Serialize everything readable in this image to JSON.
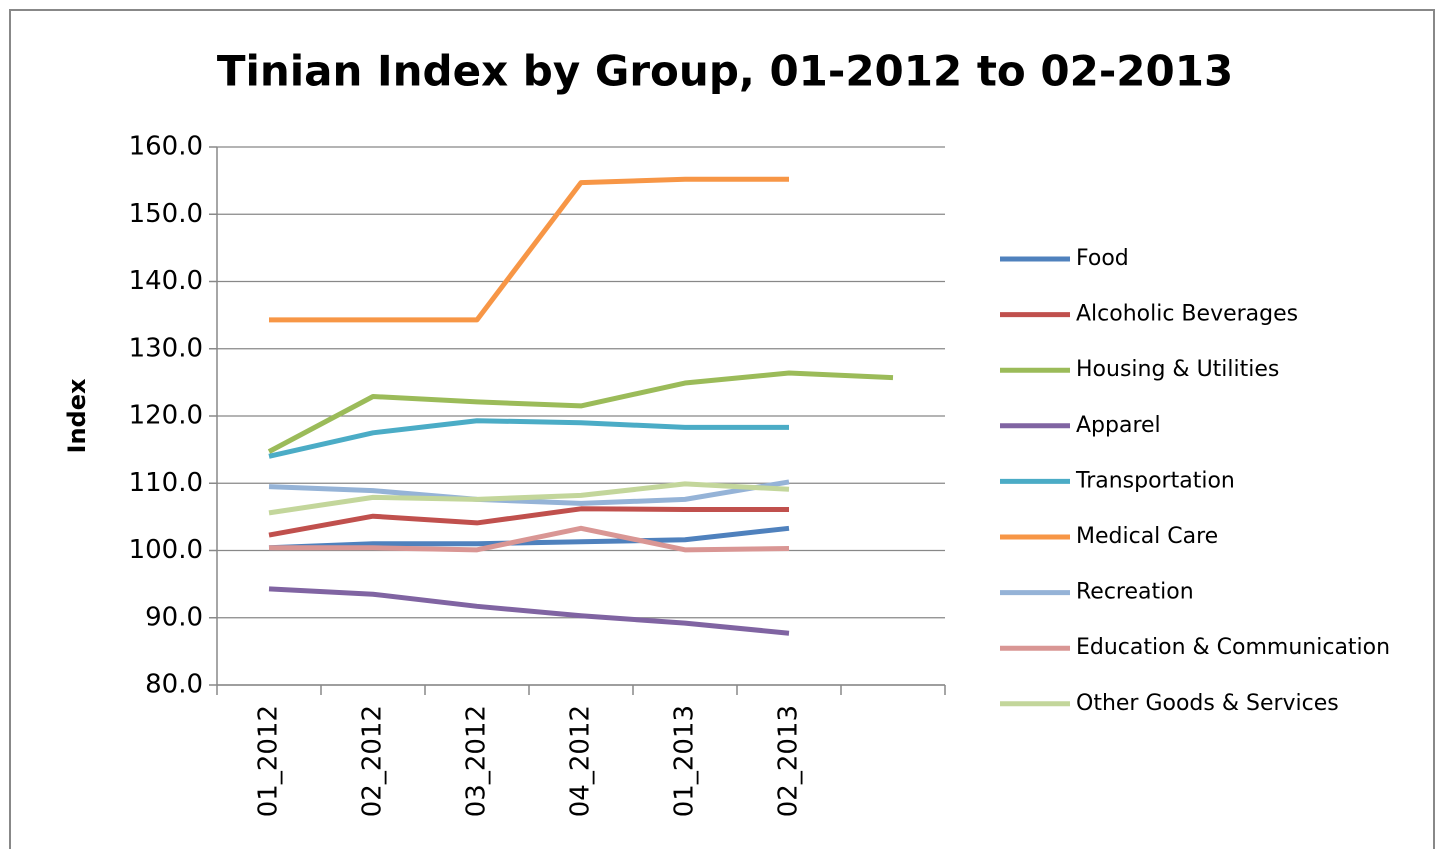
{
  "chart_data": {
    "type": "line",
    "title": "Tinian Index by Group, 01-2012 to 02-2013",
    "y_label": "Index",
    "categories": [
      "01_2012",
      "02_2012",
      "03_2012",
      "04_2012",
      "01_2013",
      "02_2013",
      null
    ],
    "ylim": [
      80,
      160
    ],
    "yticks": [
      {
        "value": 80,
        "label": "80.0"
      },
      {
        "value": 90,
        "label": "90.0"
      },
      {
        "value": 100,
        "label": "100.0"
      },
      {
        "value": 110,
        "label": "110.0"
      },
      {
        "value": 120,
        "label": "120.0"
      },
      {
        "value": 130,
        "label": "130.0"
      },
      {
        "value": 140,
        "label": "140.0"
      },
      {
        "value": 150,
        "label": "150.0"
      },
      {
        "value": 160,
        "label": "160.0"
      }
    ],
    "grid": true,
    "legend": "right",
    "series": [
      {
        "name": "Food",
        "color": "#4f81bd",
        "values": [
          100.4,
          101.0,
          101.0,
          101.3,
          101.6,
          103.3,
          null
        ]
      },
      {
        "name": "Alcoholic Beverages",
        "color": "#c0504d",
        "values": [
          102.3,
          105.1,
          104.1,
          106.2,
          106.1,
          106.1,
          null
        ]
      },
      {
        "name": "Housing & Utilities",
        "color": "#9bbb59",
        "values": [
          114.7,
          122.9,
          122.1,
          121.5,
          124.9,
          126.4,
          125.7
        ]
      },
      {
        "name": "Apparel",
        "color": "#8064a2",
        "values": [
          94.3,
          93.5,
          91.7,
          90.3,
          89.2,
          87.7,
          null
        ]
      },
      {
        "name": "Transportation",
        "color": "#4bacc6",
        "values": [
          114.0,
          117.5,
          119.3,
          119.0,
          118.3,
          118.3,
          null
        ]
      },
      {
        "name": "Medical Care",
        "color": "#f79646",
        "values": [
          134.3,
          134.3,
          134.3,
          154.7,
          155.2,
          155.2,
          null
        ]
      },
      {
        "name": "Recreation",
        "color": "#95b3d7",
        "values": [
          109.5,
          108.9,
          107.6,
          107.0,
          107.6,
          110.2,
          null
        ]
      },
      {
        "name": "Education & Communication",
        "color": "#d99694",
        "values": [
          100.4,
          100.4,
          100.1,
          103.3,
          100.1,
          100.3,
          null
        ]
      },
      {
        "name": "Other Goods & Services",
        "color": "#c3d69b",
        "values": [
          105.6,
          107.9,
          107.6,
          108.2,
          109.9,
          109.1,
          null
        ]
      }
    ]
  }
}
